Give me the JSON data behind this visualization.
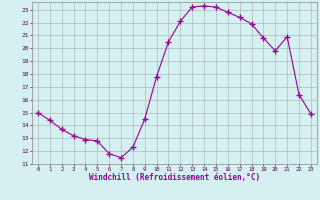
{
  "x": [
    0,
    1,
    2,
    3,
    4,
    5,
    6,
    7,
    8,
    9,
    10,
    11,
    12,
    13,
    14,
    15,
    16,
    17,
    18,
    19,
    20,
    21,
    22,
    23
  ],
  "y": [
    15.0,
    14.4,
    13.7,
    13.2,
    12.9,
    12.8,
    11.8,
    11.5,
    12.3,
    14.5,
    17.8,
    20.5,
    22.1,
    23.2,
    23.3,
    23.2,
    22.8,
    22.4,
    21.9,
    20.8,
    19.8,
    20.9,
    16.4,
    14.9
  ],
  "line_color": "#990099",
  "marker": "+",
  "marker_size": 4,
  "bg_color": "#d5f0f0",
  "grid_color": "#aaaaaa",
  "xlabel": "Windchill (Refroidissement éolien,°C)",
  "yticks": [
    11,
    12,
    13,
    14,
    15,
    16,
    17,
    18,
    19,
    20,
    21,
    22,
    23
  ],
  "xlim": [
    -0.5,
    23.5
  ],
  "ylim": [
    11,
    23.6
  ]
}
